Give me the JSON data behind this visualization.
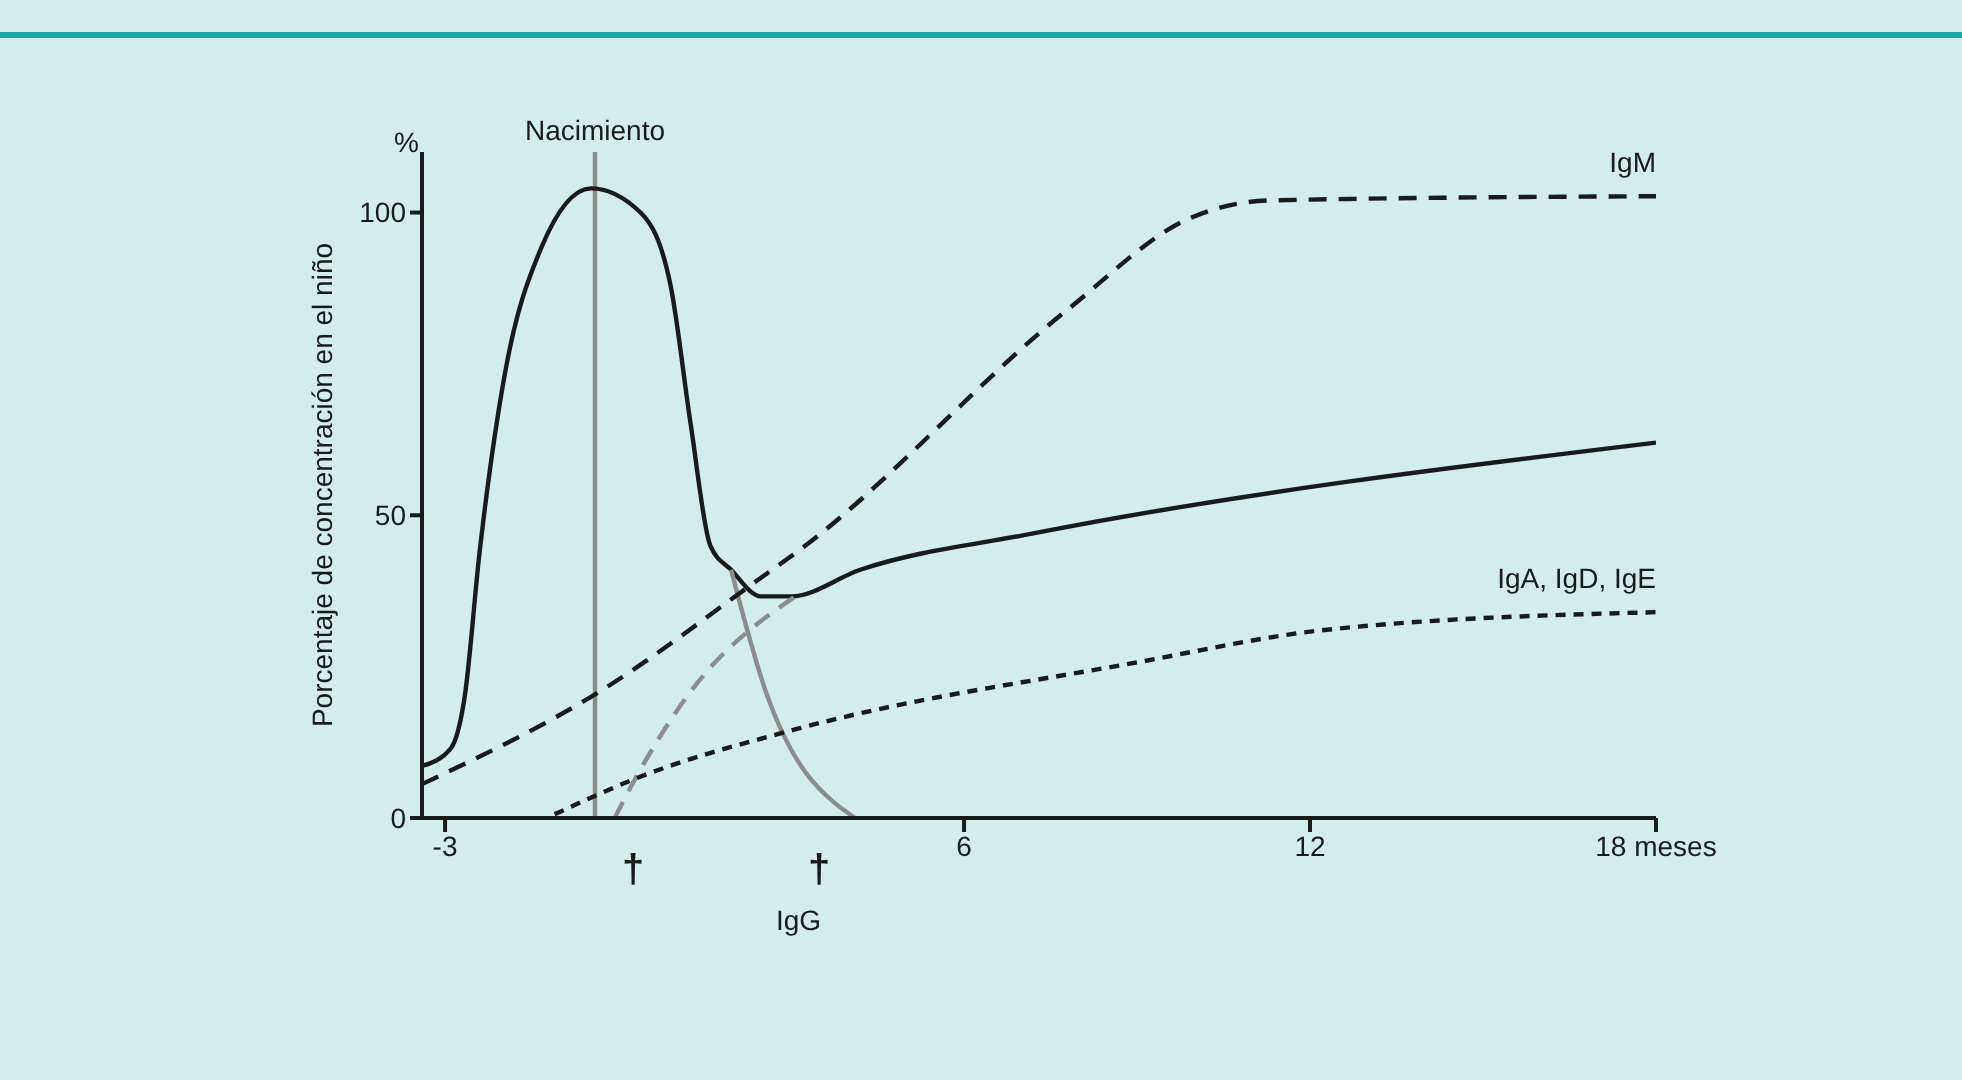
{
  "chart_data": {
    "type": "line",
    "ylabel": "Porcentaje de concentración en el niño",
    "xlim": [
      -3.4,
      18
    ],
    "xticks": [
      -3,
      6,
      12,
      {
        "value": 18,
        "label": "18 meses"
      }
    ],
    "ylim": [
      0,
      110
    ],
    "yticks": [
      0,
      50,
      100
    ],
    "grid": false,
    "legend": false,
    "marker": "none",
    "series": [
      {
        "color": "#1a1a1a",
        "line_style": "solid",
        "x": [
          -3.4,
          -2.9,
          -2.66,
          -2.4,
          -1.97,
          -1.34,
          -0.47,
          0.39,
          0.91,
          1.26,
          1.6,
          1.96,
          2.48,
          3.0,
          4.2,
          7.2,
          18
        ],
        "values": [
          8.6,
          11.5,
          20,
          44,
          73,
          94,
          104,
          100,
          88,
          65,
          45,
          41,
          36.6,
          36.6,
          41,
          47,
          62
        ]
      },
      {
        "color": "#8c8c8c",
        "line_style": "solid",
        "x": [
          1.96,
          2.58,
          4.11
        ],
        "values": [
          41,
          20.4,
          0
        ]
      },
      {
        "color": "#8c8c8c",
        "line_style": "dashed",
        "x": [
          -0.06,
          0.3,
          1.19,
          3.07
        ],
        "values": [
          0,
          6.5,
          20,
          36.6
        ]
      },
      {
        "name": "IgM",
        "color": "#1a1a1a",
        "line_style": "dashed",
        "x": [
          -3.4,
          -0.3,
          2.38,
          3.18,
          7.8,
          9.9,
          11.3,
          18
        ],
        "values": [
          5.6,
          21,
          39,
          44.5,
          84,
          99,
          102,
          102.7
        ]
      },
      {
        "name": "IgA, IgD, IgE",
        "color": "#1a1a1a",
        "line_style": "dotted",
        "x": [
          -1.1,
          0.3,
          3.1,
          9,
          12.2,
          18
        ],
        "values": [
          0.6,
          6.5,
          14.7,
          25.7,
          31,
          34
        ]
      }
    ],
    "ref_lines": [
      {
        "axis": "x",
        "value": -0.4,
        "label": "Nacimiento",
        "color": "#8c8c8c"
      }
    ],
    "annotations": [
      "%",
      "IgG",
      "†",
      "†"
    ]
  }
}
